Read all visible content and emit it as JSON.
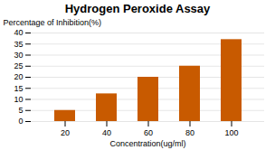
{
  "chart_data": {
    "type": "bar",
    "title": "Hydrogen Peroxide Assay",
    "xlabel": "Concentration(ug/ml)",
    "ylabel": "Percentage of Inhibition(%)",
    "categories": [
      20,
      40,
      60,
      80,
      100
    ],
    "values": [
      5,
      12.5,
      20,
      25,
      37
    ],
    "color": "#C85A00",
    "ylim": [
      0,
      40
    ],
    "yticks": [
      0,
      5,
      10,
      15,
      20,
      25,
      30,
      35,
      40
    ],
    "grid": true
  }
}
